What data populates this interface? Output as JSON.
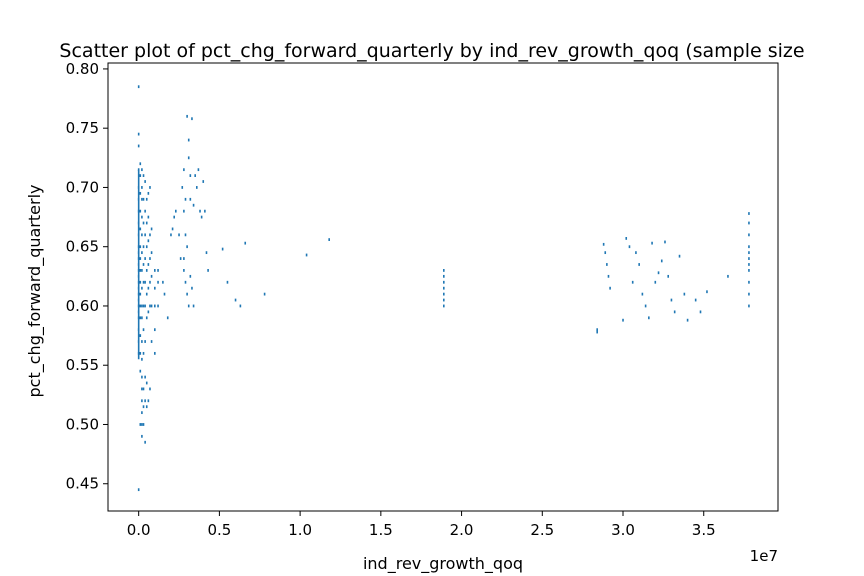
{
  "chart_data": {
    "type": "scatter",
    "title": "Scatter plot of pct_chg_forward_quarterly by ind_rev_growth_qoq (sample size",
    "xlabel": "ind_rev_growth_qoq",
    "ylabel": "pct_chg_forward_quarterly",
    "x_offset_label": "1e7",
    "x_scale": 10000000,
    "xlim": [
      -0.19,
      3.96
    ],
    "ylim": [
      0.427,
      0.805
    ],
    "xticks": [
      0.0,
      0.5,
      1.0,
      1.5,
      2.0,
      2.5,
      3.0,
      3.5
    ],
    "xtick_labels": [
      "0.0",
      "0.5",
      "1.0",
      "1.5",
      "2.0",
      "2.5",
      "3.0",
      "3.5"
    ],
    "yticks": [
      0.45,
      0.5,
      0.55,
      0.6,
      0.65,
      0.7,
      0.75,
      0.8
    ],
    "ytick_labels": [
      "0.45",
      "0.50",
      "0.55",
      "0.60",
      "0.65",
      "0.70",
      "0.75",
      "0.80"
    ],
    "grid": false,
    "color": "#1f77b4",
    "series": [
      {
        "x": [
          0.0,
          0.0,
          0.0,
          0.0,
          0.0,
          0.0,
          0.0,
          0.0,
          0.0,
          0.0,
          0.0,
          0.0,
          0.0,
          0.0,
          0.0,
          0.0,
          0.0,
          0.0,
          0.0,
          0.0,
          0.0,
          0.0,
          0.0,
          0.0,
          0.0,
          0.0,
          0.01,
          0.01,
          0.01,
          0.01,
          0.01,
          0.01,
          0.01,
          0.01,
          0.01,
          0.01,
          0.01,
          0.01,
          0.01,
          0.01,
          0.01,
          0.01,
          0.02,
          0.02,
          0.02,
          0.02,
          0.02,
          0.02,
          0.02,
          0.02,
          0.02,
          0.02,
          0.02,
          0.02,
          0.02,
          0.02,
          0.02,
          0.02,
          0.02,
          0.02,
          0.03,
          0.03,
          0.03,
          0.03,
          0.03,
          0.03,
          0.03,
          0.03,
          0.03,
          0.03,
          0.03,
          0.03,
          0.04,
          0.04,
          0.04,
          0.04,
          0.04,
          0.04,
          0.04,
          0.04,
          0.04,
          0.04,
          0.05,
          0.05,
          0.05,
          0.05,
          0.05,
          0.05,
          0.05,
          0.05,
          0.06,
          0.06,
          0.06,
          0.06,
          0.06,
          0.06,
          0.06,
          0.07,
          0.07,
          0.07,
          0.07,
          0.07,
          0.07,
          0.08,
          0.08,
          0.08,
          0.08,
          0.08,
          0.1,
          0.1,
          0.1,
          0.1,
          0.1,
          0.12,
          0.12,
          0.12,
          0.15,
          0.16,
          0.18,
          0.2,
          0.21,
          0.22,
          0.23,
          0.25,
          0.26,
          0.28,
          0.27,
          0.28,
          0.28,
          0.29,
          0.29,
          0.3,
          0.3,
          0.31,
          0.31,
          0.32,
          0.32,
          0.33,
          0.34,
          0.35,
          0.36,
          0.37,
          0.38,
          0.39,
          0.4,
          0.41,
          0.42,
          0.43,
          0.28,
          0.29,
          0.3,
          0.31,
          0.32,
          0.33,
          0.34,
          0.52,
          0.55,
          0.6,
          0.63,
          0.66,
          0.78,
          1.04,
          1.18,
          1.89,
          1.89,
          1.89,
          1.89,
          1.89,
          1.89,
          1.89,
          2.84,
          2.84,
          2.88,
          2.89,
          2.9,
          2.91,
          2.92,
          3.0,
          3.02,
          3.04,
          3.06,
          3.08,
          3.1,
          3.12,
          3.14,
          3.16,
          3.18,
          3.2,
          3.22,
          3.24,
          3.26,
          3.28,
          3.3,
          3.32,
          3.35,
          3.38,
          3.4,
          3.45,
          3.48,
          3.52,
          3.65,
          3.78,
          3.78,
          3.78,
          3.78,
          3.78,
          3.78,
          3.78,
          3.78,
          3.78,
          3.78,
          3.78
        ],
        "y": [
          0.785,
          0.745,
          0.735,
          0.715,
          0.7,
          0.69,
          0.68,
          0.67,
          0.66,
          0.65,
          0.645,
          0.64,
          0.635,
          0.63,
          0.625,
          0.62,
          0.615,
          0.61,
          0.605,
          0.6,
          0.595,
          0.59,
          0.58,
          0.57,
          0.56,
          0.445,
          0.72,
          0.71,
          0.695,
          0.68,
          0.665,
          0.65,
          0.64,
          0.63,
          0.62,
          0.61,
          0.6,
          0.59,
          0.575,
          0.56,
          0.545,
          0.5,
          0.715,
          0.7,
          0.69,
          0.675,
          0.66,
          0.645,
          0.63,
          0.615,
          0.6,
          0.59,
          0.57,
          0.555,
          0.54,
          0.53,
          0.52,
          0.51,
          0.5,
          0.49,
          0.71,
          0.69,
          0.67,
          0.65,
          0.635,
          0.62,
          0.6,
          0.58,
          0.56,
          0.53,
          0.515,
          0.5,
          0.705,
          0.68,
          0.66,
          0.64,
          0.62,
          0.6,
          0.57,
          0.54,
          0.52,
          0.485,
          0.69,
          0.67,
          0.65,
          0.63,
          0.61,
          0.59,
          0.535,
          0.515,
          0.695,
          0.675,
          0.655,
          0.635,
          0.615,
          0.595,
          0.52,
          0.7,
          0.66,
          0.64,
          0.62,
          0.6,
          0.53,
          0.665,
          0.645,
          0.625,
          0.6,
          0.57,
          0.63,
          0.615,
          0.6,
          0.58,
          0.56,
          0.63,
          0.62,
          0.6,
          0.62,
          0.61,
          0.59,
          0.66,
          0.665,
          0.675,
          0.68,
          0.66,
          0.64,
          0.63,
          0.7,
          0.715,
          0.68,
          0.69,
          0.66,
          0.76,
          0.65,
          0.725,
          0.74,
          0.71,
          0.69,
          0.758,
          0.685,
          0.71,
          0.7,
          0.715,
          0.68,
          0.675,
          0.705,
          0.68,
          0.645,
          0.63,
          0.64,
          0.62,
          0.61,
          0.6,
          0.625,
          0.615,
          0.6,
          0.648,
          0.62,
          0.605,
          0.6,
          0.653,
          0.61,
          0.643,
          0.656,
          0.63,
          0.625,
          0.62,
          0.615,
          0.61,
          0.605,
          0.6,
          0.58,
          0.578,
          0.652,
          0.645,
          0.635,
          0.625,
          0.615,
          0.588,
          0.657,
          0.65,
          0.62,
          0.645,
          0.635,
          0.61,
          0.6,
          0.59,
          0.653,
          0.62,
          0.628,
          0.638,
          0.654,
          0.625,
          0.605,
          0.595,
          0.642,
          0.61,
          0.588,
          0.605,
          0.595,
          0.612,
          0.625,
          0.678,
          0.67,
          0.66,
          0.65,
          0.645,
          0.64,
          0.635,
          0.63,
          0.62,
          0.61,
          0.6
        ]
      }
    ]
  }
}
